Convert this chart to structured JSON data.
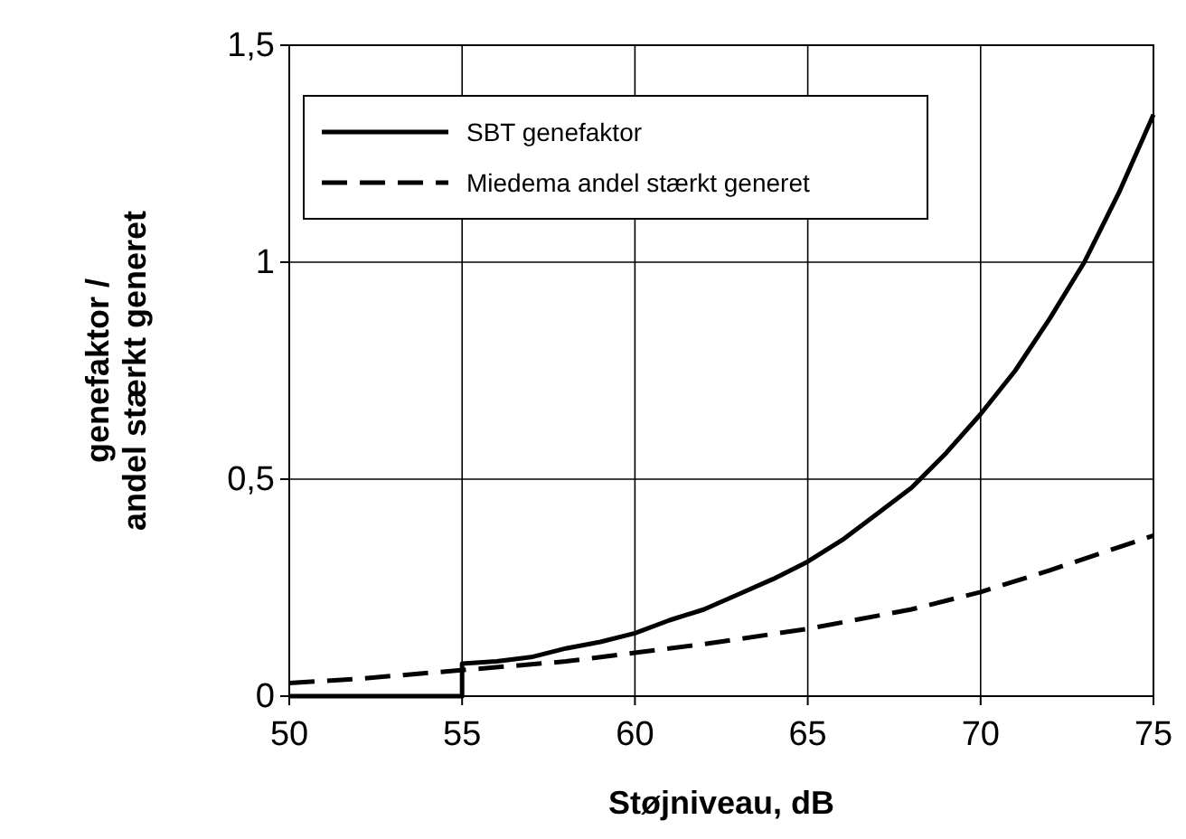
{
  "chart_data": {
    "type": "line",
    "xlabel": "Støjniveau, dB",
    "ylabel": "genefaktor /\nandel stærkt generet",
    "xlim": [
      50,
      75
    ],
    "xticks": [
      50,
      55,
      60,
      65,
      70,
      75
    ],
    "ylim": [
      0,
      1.5
    ],
    "yticks": [
      0,
      {
        "value": 0.5,
        "label": "0,5"
      },
      1,
      {
        "value": 1.5,
        "label": "1,5"
      }
    ],
    "grid": true,
    "legend": "top left",
    "marker": "none",
    "series": [
      {
        "name": "SBT genefaktor",
        "color": "#000000",
        "line_style": "solid",
        "x": [
          50,
          55,
          55,
          56,
          57,
          58,
          59,
          60,
          61,
          62,
          63,
          64,
          65,
          66,
          67,
          68,
          69,
          70,
          71,
          72,
          73,
          74,
          75
        ],
        "values": [
          0,
          0,
          0.075,
          0.08,
          0.09,
          0.11,
          0.125,
          0.145,
          0.175,
          0.2,
          0.235,
          0.27,
          0.31,
          0.36,
          0.42,
          0.48,
          0.56,
          0.65,
          0.75,
          0.87,
          1.0,
          1.16,
          1.34
        ]
      },
      {
        "name": "Miedema andel stærkt generet",
        "color": "#000000",
        "line_style": "dashed",
        "x": [
          50,
          52,
          55,
          58,
          60,
          62,
          65,
          68,
          70,
          72,
          75
        ],
        "values": [
          0.03,
          0.04,
          0.06,
          0.08,
          0.1,
          0.12,
          0.155,
          0.2,
          0.24,
          0.29,
          0.37
        ]
      }
    ]
  }
}
